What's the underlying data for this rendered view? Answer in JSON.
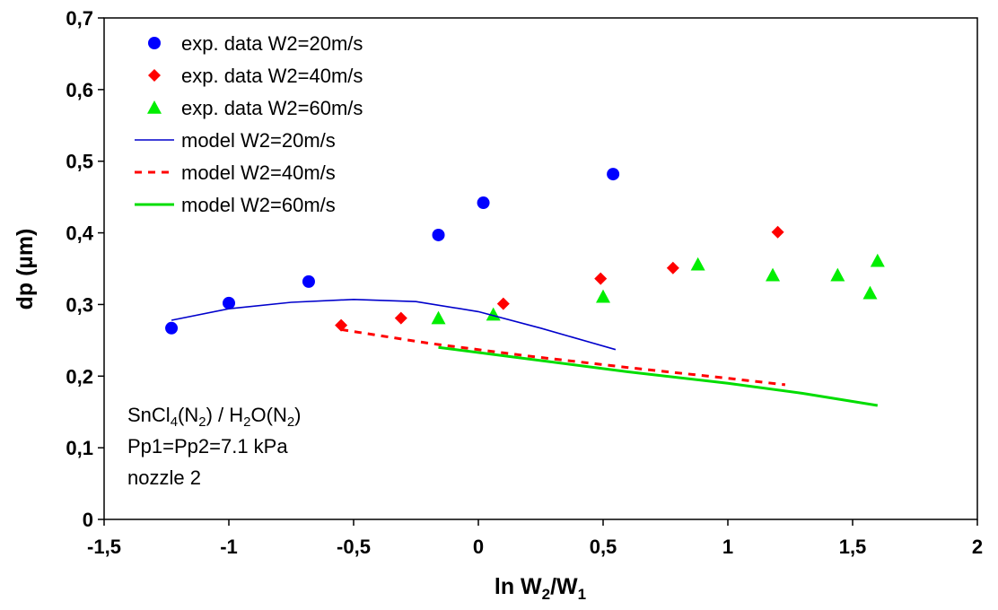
{
  "chart_data": {
    "type": "scatter",
    "title": "",
    "xlabel": "ln W2/W1",
    "xlabel_main": "ln W",
    "xlabel_sub1": "2",
    "xlabel_mid": "/W",
    "xlabel_sub2": "1",
    "ylabel": "dp (µm)",
    "xlim": [
      -1.5,
      2
    ],
    "ylim": [
      0,
      0.7
    ],
    "x_ticks": [
      -1.5,
      -1,
      -0.5,
      0,
      0.5,
      1,
      1.5,
      2
    ],
    "x_tick_labels": [
      "-1,5",
      "-1",
      "-0,5",
      "0",
      "0,5",
      "1",
      "1,5",
      "2"
    ],
    "y_ticks": [
      0,
      0.1,
      0.2,
      0.3,
      0.4,
      0.5,
      0.6,
      0.7
    ],
    "y_tick_labels": [
      "0",
      "0,1",
      "0,2",
      "0,3",
      "0,4",
      "0,5",
      "0,6",
      "0,7"
    ],
    "grid": false,
    "legend_position": "top-left",
    "series": [
      {
        "name": "exp. data W2=20m/s",
        "kind": "points",
        "marker": "circle",
        "color": "#0000ff",
        "points": [
          [
            -1.23,
            0.267
          ],
          [
            -1.0,
            0.302
          ],
          [
            -0.68,
            0.332
          ],
          [
            -0.16,
            0.397
          ],
          [
            0.02,
            0.442
          ],
          [
            0.54,
            0.482
          ]
        ]
      },
      {
        "name": "exp. data W2=40m/s",
        "kind": "points",
        "marker": "diamond",
        "color": "#ff0000",
        "points": [
          [
            -0.55,
            0.271
          ],
          [
            -0.31,
            0.281
          ],
          [
            0.1,
            0.301
          ],
          [
            0.49,
            0.336
          ],
          [
            0.78,
            0.351
          ],
          [
            1.2,
            0.401
          ]
        ]
      },
      {
        "name": "exp. data W2=60m/s",
        "kind": "points",
        "marker": "triangle",
        "color": "#00ee00",
        "points": [
          [
            -0.16,
            0.281
          ],
          [
            0.06,
            0.286
          ],
          [
            0.5,
            0.311
          ],
          [
            0.88,
            0.356
          ],
          [
            1.18,
            0.341
          ],
          [
            1.44,
            0.341
          ],
          [
            1.57,
            0.316
          ],
          [
            1.6,
            0.361
          ]
        ]
      },
      {
        "name": "model W2=20m/s",
        "kind": "line",
        "dash": "solid",
        "color": "#0000cc",
        "points": [
          [
            -1.23,
            0.278
          ],
          [
            -1.0,
            0.294
          ],
          [
            -0.75,
            0.303
          ],
          [
            -0.5,
            0.307
          ],
          [
            -0.25,
            0.304
          ],
          [
            0.0,
            0.29
          ],
          [
            0.25,
            0.267
          ],
          [
            0.55,
            0.237
          ]
        ]
      },
      {
        "name": "model W2=40m/s",
        "kind": "line",
        "dash": "dashed",
        "color": "#ff0000",
        "points": [
          [
            -0.55,
            0.265
          ],
          [
            -0.2,
            0.246
          ],
          [
            0.2,
            0.228
          ],
          [
            0.6,
            0.212
          ],
          [
            1.0,
            0.197
          ],
          [
            1.23,
            0.188
          ]
        ]
      },
      {
        "name": "model W2=60m/s",
        "kind": "line",
        "dash": "solid",
        "color": "#00dd00",
        "points": [
          [
            -0.16,
            0.24
          ],
          [
            0.2,
            0.224
          ],
          [
            0.6,
            0.206
          ],
          [
            1.0,
            0.19
          ],
          [
            1.3,
            0.176
          ],
          [
            1.6,
            0.159
          ]
        ]
      }
    ],
    "annotation": {
      "line1_parts": [
        "SnCl",
        "4",
        "(N",
        "2",
        ") / H",
        "2",
        "O(N",
        "2",
        ")"
      ],
      "line2": "Pp1=Pp2=7.1 kPa",
      "line3": "nozzle 2"
    }
  }
}
